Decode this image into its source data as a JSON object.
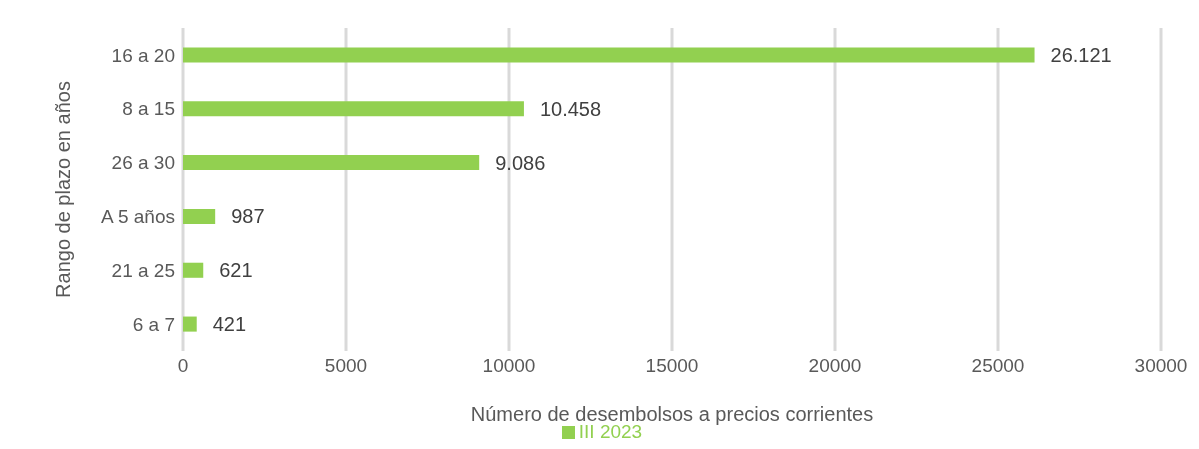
{
  "chart_data": {
    "type": "bar",
    "orientation": "horizontal",
    "xlabel": "Número de desembolsos a precios corrientes",
    "ylabel": "Rango de plazo en años",
    "categories": [
      "16 a 20",
      "8 a 15",
      "26 a 30",
      "A 5 años",
      "21 a 25",
      "6 a 7"
    ],
    "series": [
      {
        "name": "III 2023",
        "color": "#92d050",
        "values": [
          26121,
          10458,
          9086,
          987,
          621,
          421
        ],
        "value_labels": [
          "26.121",
          "10.458",
          "9.086",
          "987",
          "621",
          "421"
        ]
      }
    ],
    "xlim": [
      0,
      30000
    ],
    "xticks": [
      0,
      5000,
      10000,
      15000,
      20000,
      25000,
      30000
    ],
    "grid": "x",
    "legend": "bottom"
  }
}
